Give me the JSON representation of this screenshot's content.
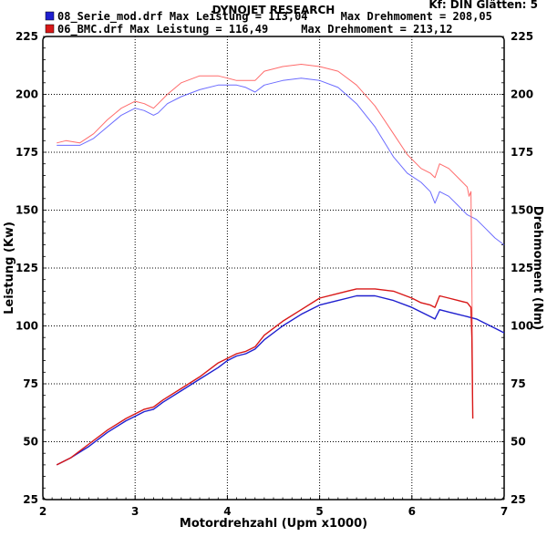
{
  "header": {
    "title": "DYNOJET RESEARCH",
    "settings": "Kf: DIN  Glätten: 5"
  },
  "legend": [
    {
      "text": "08_Serie_mod.drf Max Leistung = 113,04     Max Drehmoment = 208,05",
      "color": "#1f1fcf"
    },
    {
      "text": "06_BMC.drf Max Leistung = 116,49     Max Drehmoment = 213,12",
      "color": "#d81818"
    }
  ],
  "chart_data": {
    "type": "line",
    "xlabel": "Motordrehzahl (Upm x1000)",
    "ylabel_left": "Leistung (Kw)",
    "ylabel_right": "Drehmoment (Nm)",
    "xlim": [
      2,
      7
    ],
    "ylim": [
      25,
      225
    ],
    "x_ticks": [
      "2",
      "3",
      "4",
      "5",
      "6",
      "7"
    ],
    "y_ticks": [
      "25",
      "50",
      "75",
      "100",
      "125",
      "150",
      "175",
      "200",
      "225"
    ],
    "grid": true,
    "colors": {
      "serie": "#1f1fcf",
      "serie_light": "#6b6bff",
      "bmc": "#d81818",
      "bmc_light": "#ff6b6b"
    },
    "series": [
      {
        "name": "08_Serie_mod.drf",
        "quantity": "Drehmoment",
        "x": [
          2.15,
          2.25,
          2.4,
          2.55,
          2.7,
          2.85,
          3.0,
          3.1,
          3.2,
          3.25,
          3.35,
          3.5,
          3.7,
          3.9,
          4.0,
          4.1,
          4.2,
          4.3,
          4.4,
          4.6,
          4.8,
          5.0,
          5.2,
          5.4,
          5.6,
          5.8,
          5.95,
          6.1,
          6.2,
          6.25,
          6.3,
          6.4,
          6.5,
          6.6,
          6.7,
          6.8,
          6.9,
          7.0
        ],
        "values": [
          178,
          178,
          178,
          181,
          186,
          191,
          194,
          193,
          191,
          192,
          196,
          199,
          202,
          204,
          204,
          204,
          203,
          201,
          204,
          206,
          207,
          206,
          203,
          196,
          186,
          173,
          166,
          162,
          158,
          153,
          158,
          156,
          152,
          148,
          146,
          142,
          138,
          135
        ]
      },
      {
        "name": "06_BMC.drf",
        "quantity": "Drehmoment",
        "x": [
          2.15,
          2.25,
          2.4,
          2.55,
          2.7,
          2.85,
          3.0,
          3.1,
          3.2,
          3.25,
          3.35,
          3.5,
          3.7,
          3.9,
          4.0,
          4.1,
          4.2,
          4.3,
          4.4,
          4.6,
          4.8,
          5.0,
          5.2,
          5.4,
          5.6,
          5.8,
          5.95,
          6.1,
          6.2,
          6.25,
          6.3,
          6.4,
          6.5,
          6.6,
          6.62,
          6.64,
          6.65,
          6.66
        ],
        "values": [
          179,
          180,
          179,
          183,
          189,
          194,
          197,
          196,
          194,
          196,
          200,
          205,
          208,
          208,
          207,
          206,
          206,
          206,
          210,
          212,
          213,
          212,
          210,
          204,
          195,
          183,
          174,
          168,
          166,
          164,
          170,
          168,
          164,
          160,
          156,
          158,
          120,
          60
        ]
      },
      {
        "name": "08_Serie_mod.drf",
        "quantity": "Leistung",
        "x": [
          2.15,
          2.3,
          2.5,
          2.7,
          2.9,
          3.0,
          3.1,
          3.2,
          3.3,
          3.5,
          3.7,
          3.9,
          4.0,
          4.1,
          4.2,
          4.3,
          4.4,
          4.6,
          4.8,
          5.0,
          5.2,
          5.4,
          5.6,
          5.8,
          6.0,
          6.1,
          6.2,
          6.25,
          6.3,
          6.4,
          6.5,
          6.6,
          6.7,
          6.8,
          6.9,
          7.0
        ],
        "values": [
          40,
          43,
          48,
          54,
          59,
          61,
          63,
          64,
          67,
          72,
          77,
          82,
          85,
          87,
          88,
          90,
          94,
          100,
          105,
          109,
          111,
          113,
          113,
          111,
          108,
          106,
          104,
          103,
          107,
          106,
          105,
          104,
          103,
          101,
          99,
          97
        ]
      },
      {
        "name": "06_BMC.drf",
        "quantity": "Leistung",
        "x": [
          2.15,
          2.3,
          2.5,
          2.7,
          2.9,
          3.0,
          3.1,
          3.2,
          3.3,
          3.5,
          3.7,
          3.9,
          4.0,
          4.1,
          4.2,
          4.3,
          4.4,
          4.6,
          4.8,
          5.0,
          5.2,
          5.4,
          5.6,
          5.8,
          6.0,
          6.1,
          6.2,
          6.25,
          6.3,
          6.4,
          6.5,
          6.6,
          6.62,
          6.64,
          6.65,
          6.66
        ],
        "values": [
          40,
          43,
          49,
          55,
          60,
          62,
          64,
          65,
          68,
          73,
          78,
          84,
          86,
          88,
          89,
          91,
          96,
          102,
          107,
          112,
          114,
          116,
          116,
          115,
          112,
          110,
          109,
          108,
          113,
          112,
          111,
          110,
          109,
          108,
          95,
          60
        ]
      }
    ]
  }
}
